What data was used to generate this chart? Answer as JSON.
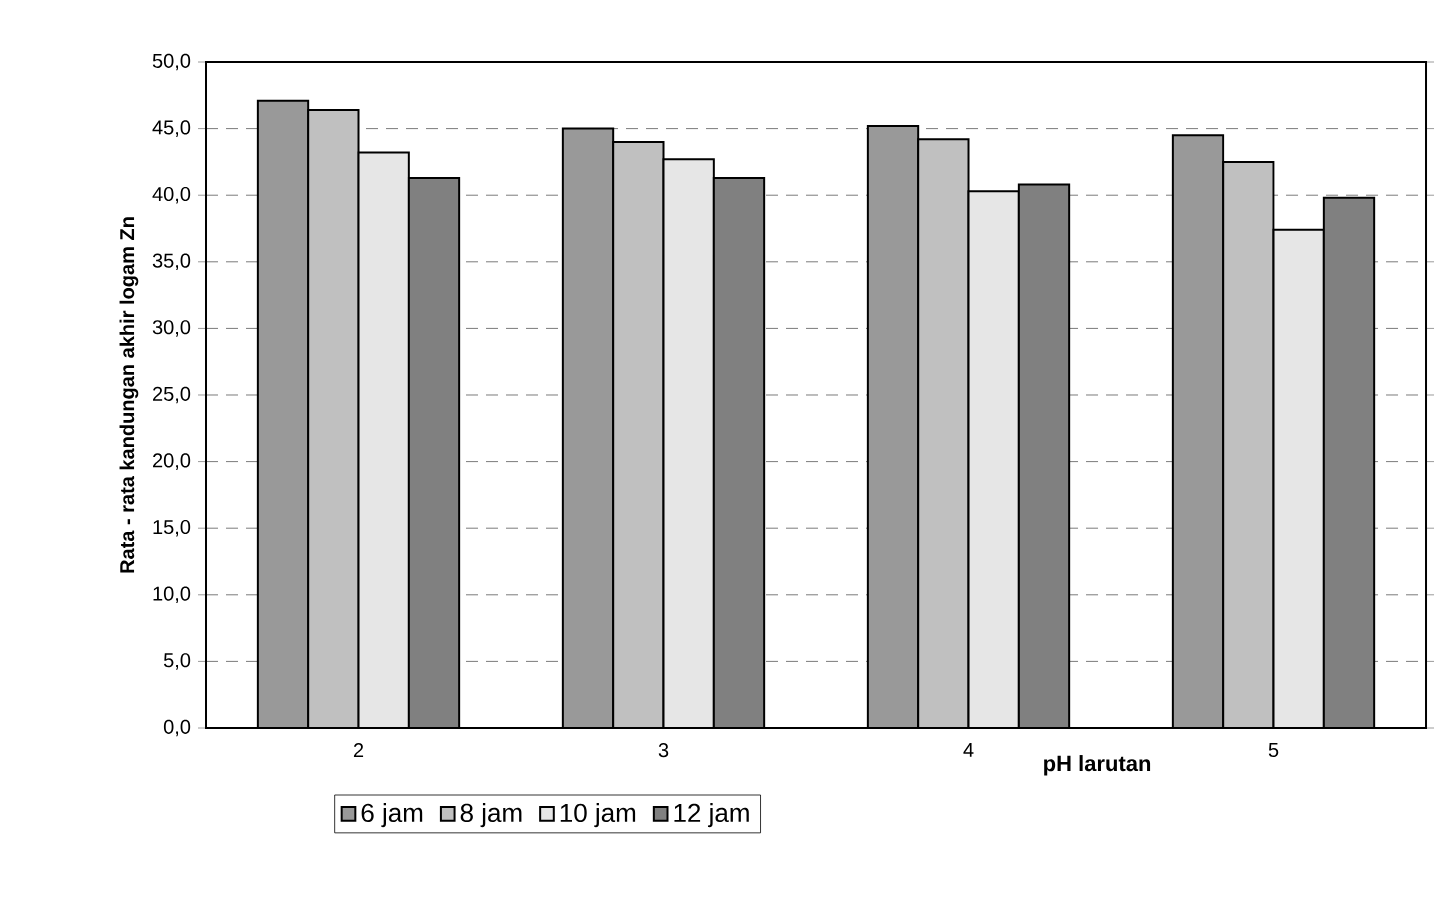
{
  "chart_data": {
    "type": "bar",
    "xlabel": "pH larutan",
    "ylabel": "Rata - rata kandungan akhir logam Zn",
    "categories": [
      "2",
      "3",
      "4",
      "5"
    ],
    "series": [
      {
        "name": "6 jam",
        "color": "#999999",
        "values": [
          47.1,
          45.0,
          45.2,
          44.5
        ]
      },
      {
        "name": "8 jam",
        "color": "#c0c0c0",
        "values": [
          46.4,
          44.0,
          44.2,
          42.5
        ]
      },
      {
        "name": "10 jam",
        "color": "#e6e6e6",
        "values": [
          43.2,
          42.7,
          40.3,
          37.4
        ]
      },
      {
        "name": "12 jam",
        "color": "#808080",
        "values": [
          41.3,
          41.3,
          40.8,
          39.8
        ]
      }
    ],
    "ylim": [
      0,
      50
    ],
    "yticks": [
      {
        "value": 0,
        "label": "0,0"
      },
      {
        "value": 5,
        "label": "5,0"
      },
      {
        "value": 10,
        "label": "10,0"
      },
      {
        "value": 15,
        "label": "15,0"
      },
      {
        "value": 20,
        "label": "20,0"
      },
      {
        "value": 25,
        "label": "25,0"
      },
      {
        "value": 30,
        "label": "30,0"
      },
      {
        "value": 35,
        "label": "35,0"
      },
      {
        "value": 40,
        "label": "40,0"
      },
      {
        "value": 45,
        "label": "45,0"
      },
      {
        "value": 50,
        "label": "50,0"
      }
    ],
    "grid": "y",
    "legend": "bottom"
  }
}
